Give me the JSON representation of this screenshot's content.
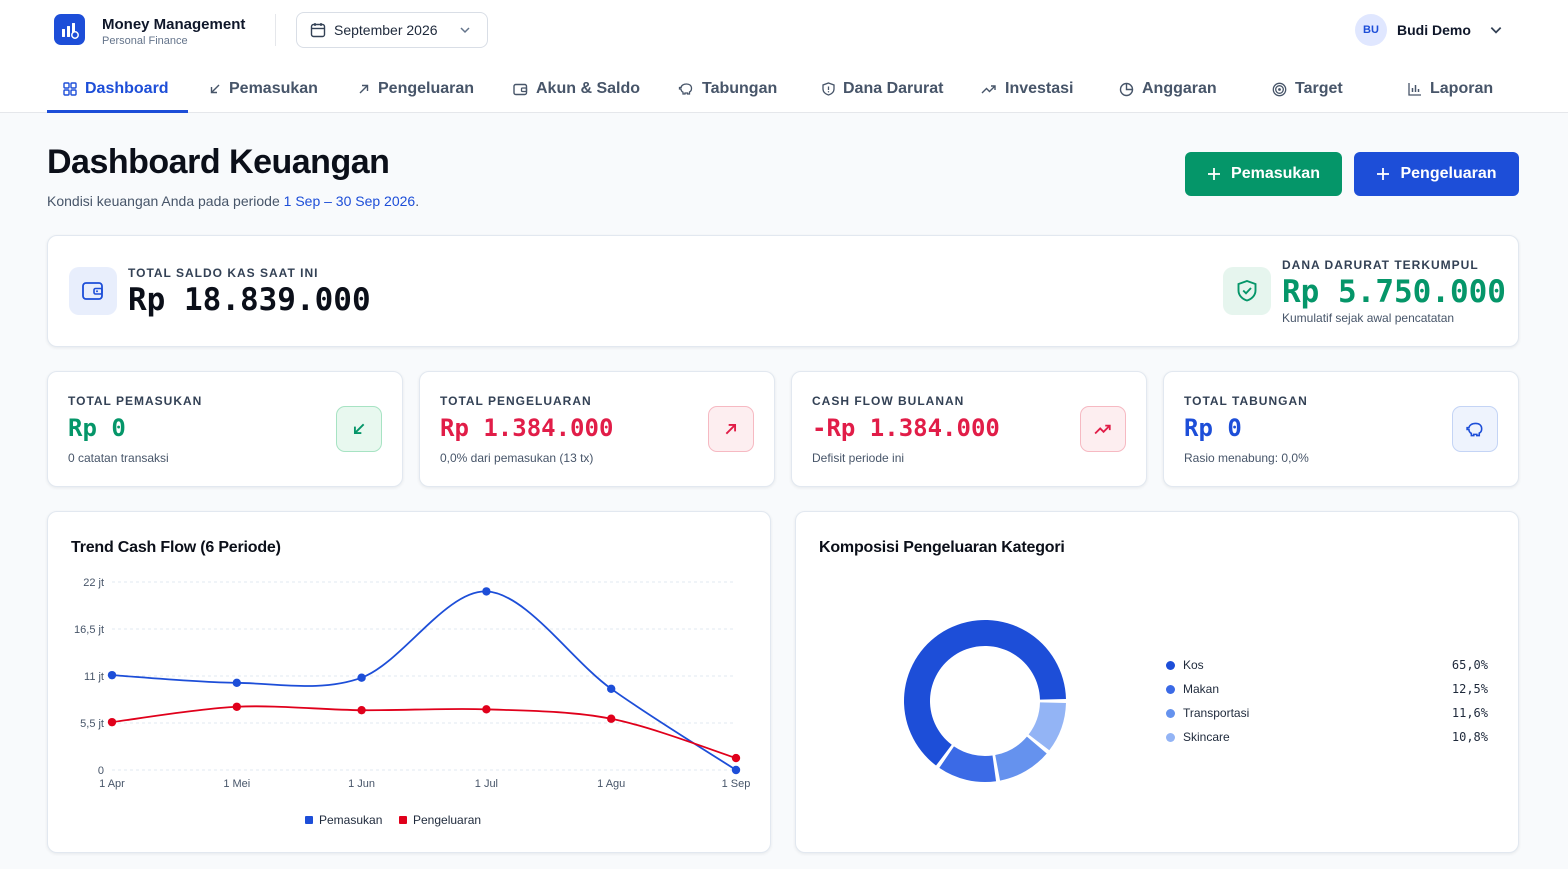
{
  "app": {
    "title": "Money Management",
    "subtitle": "Personal Finance",
    "period": "September 2026",
    "user_initials": "BU",
    "user_name": "Budi Demo"
  },
  "tabs": [
    {
      "label": "Dashboard",
      "icon": "grid-icon",
      "active": true
    },
    {
      "label": "Pemasukan",
      "icon": "arrow-down-left-icon"
    },
    {
      "label": "Pengeluaran",
      "icon": "arrow-up-right-icon"
    },
    {
      "label": "Akun & Saldo",
      "icon": "wallet-icon"
    },
    {
      "label": "Tabungan",
      "icon": "piggy-bank-icon"
    },
    {
      "label": "Dana Darurat",
      "icon": "shield-icon"
    },
    {
      "label": "Investasi",
      "icon": "trending-up-icon"
    },
    {
      "label": "Anggaran",
      "icon": "pie-chart-icon"
    },
    {
      "label": "Target",
      "icon": "target-icon"
    },
    {
      "label": "Laporan",
      "icon": "bar-chart-icon"
    }
  ],
  "page": {
    "title": "Dashboard Keuangan",
    "subtitle_prefix": "Kondisi keuangan Anda pada periode ",
    "subtitle_range": "1 Sep – 30 Sep 2026",
    "subtitle_suffix": ".",
    "btn_income": "Pemasukan",
    "btn_expense": "Pengeluaran"
  },
  "balance": {
    "label": "TOTAL SALDO KAS SAAT INI",
    "value": "Rp 18.839.000",
    "dd_label": "DANA DARURAT TERKUMPUL",
    "dd_value": "Rp 5.750.000",
    "dd_sub": "Kumulatif sejak awal pencatatan"
  },
  "stats": [
    {
      "label": "TOTAL PEMASUKAN",
      "value": "Rp 0",
      "sub": "0 catatan transaksi",
      "color": "#059669",
      "icon": "arrow-down-left-icon"
    },
    {
      "label": "TOTAL PENGELUARAN",
      "value": "Rp 1.384.000",
      "sub": "0,0% dari pemasukan (13 tx)",
      "color": "#e11d48",
      "icon": "arrow-up-right-icon"
    },
    {
      "label": "CASH FLOW BULANAN",
      "value": "-Rp 1.384.000",
      "sub": "Defisit periode ini",
      "color": "#e11d48",
      "icon": "trending-up-icon"
    },
    {
      "label": "TOTAL TABUNGAN",
      "value": "Rp 0",
      "sub": "Rasio menabung: 0,0%",
      "color": "#1d4ed8",
      "icon": "piggy-bank-icon"
    }
  ],
  "chart_data": [
    {
      "type": "line",
      "title": "Trend Cash Flow (6 Periode)",
      "categories": [
        "1 Apr",
        "1 Mei",
        "1 Jun",
        "1 Jul",
        "1 Agu",
        "1 Sep"
      ],
      "y_ticks": [
        "0",
        "5,5 jt",
        "11 jt",
        "16,5 jt",
        "22 jt"
      ],
      "ylim": [
        0,
        22
      ],
      "y_unit": "jt",
      "grid": true,
      "legend": "bottom",
      "series": [
        {
          "name": "Pemasukan",
          "color": "#1d4ed8",
          "values": [
            11.1,
            10.2,
            10.8,
            20.9,
            9.5,
            0
          ]
        },
        {
          "name": "Pengeluaran",
          "color": "#e0001b",
          "values": [
            5.6,
            7.4,
            7.0,
            7.1,
            6.0,
            1.4
          ]
        }
      ]
    },
    {
      "type": "pie",
      "title": "Komposisi Pengeluaran Kategori",
      "legend": "right",
      "slices": [
        {
          "label": "Kos",
          "value": 65.0,
          "pct": "65,0%",
          "color": "#1d4ed8"
        },
        {
          "label": "Makan",
          "value": 12.5,
          "pct": "12,5%",
          "color": "#3b6ae6"
        },
        {
          "label": "Transportasi",
          "value": 11.6,
          "pct": "11,6%",
          "color": "#6592ee"
        },
        {
          "label": "Skincare",
          "value": 10.8,
          "pct": "10,8%",
          "color": "#93b4f5"
        }
      ]
    }
  ]
}
